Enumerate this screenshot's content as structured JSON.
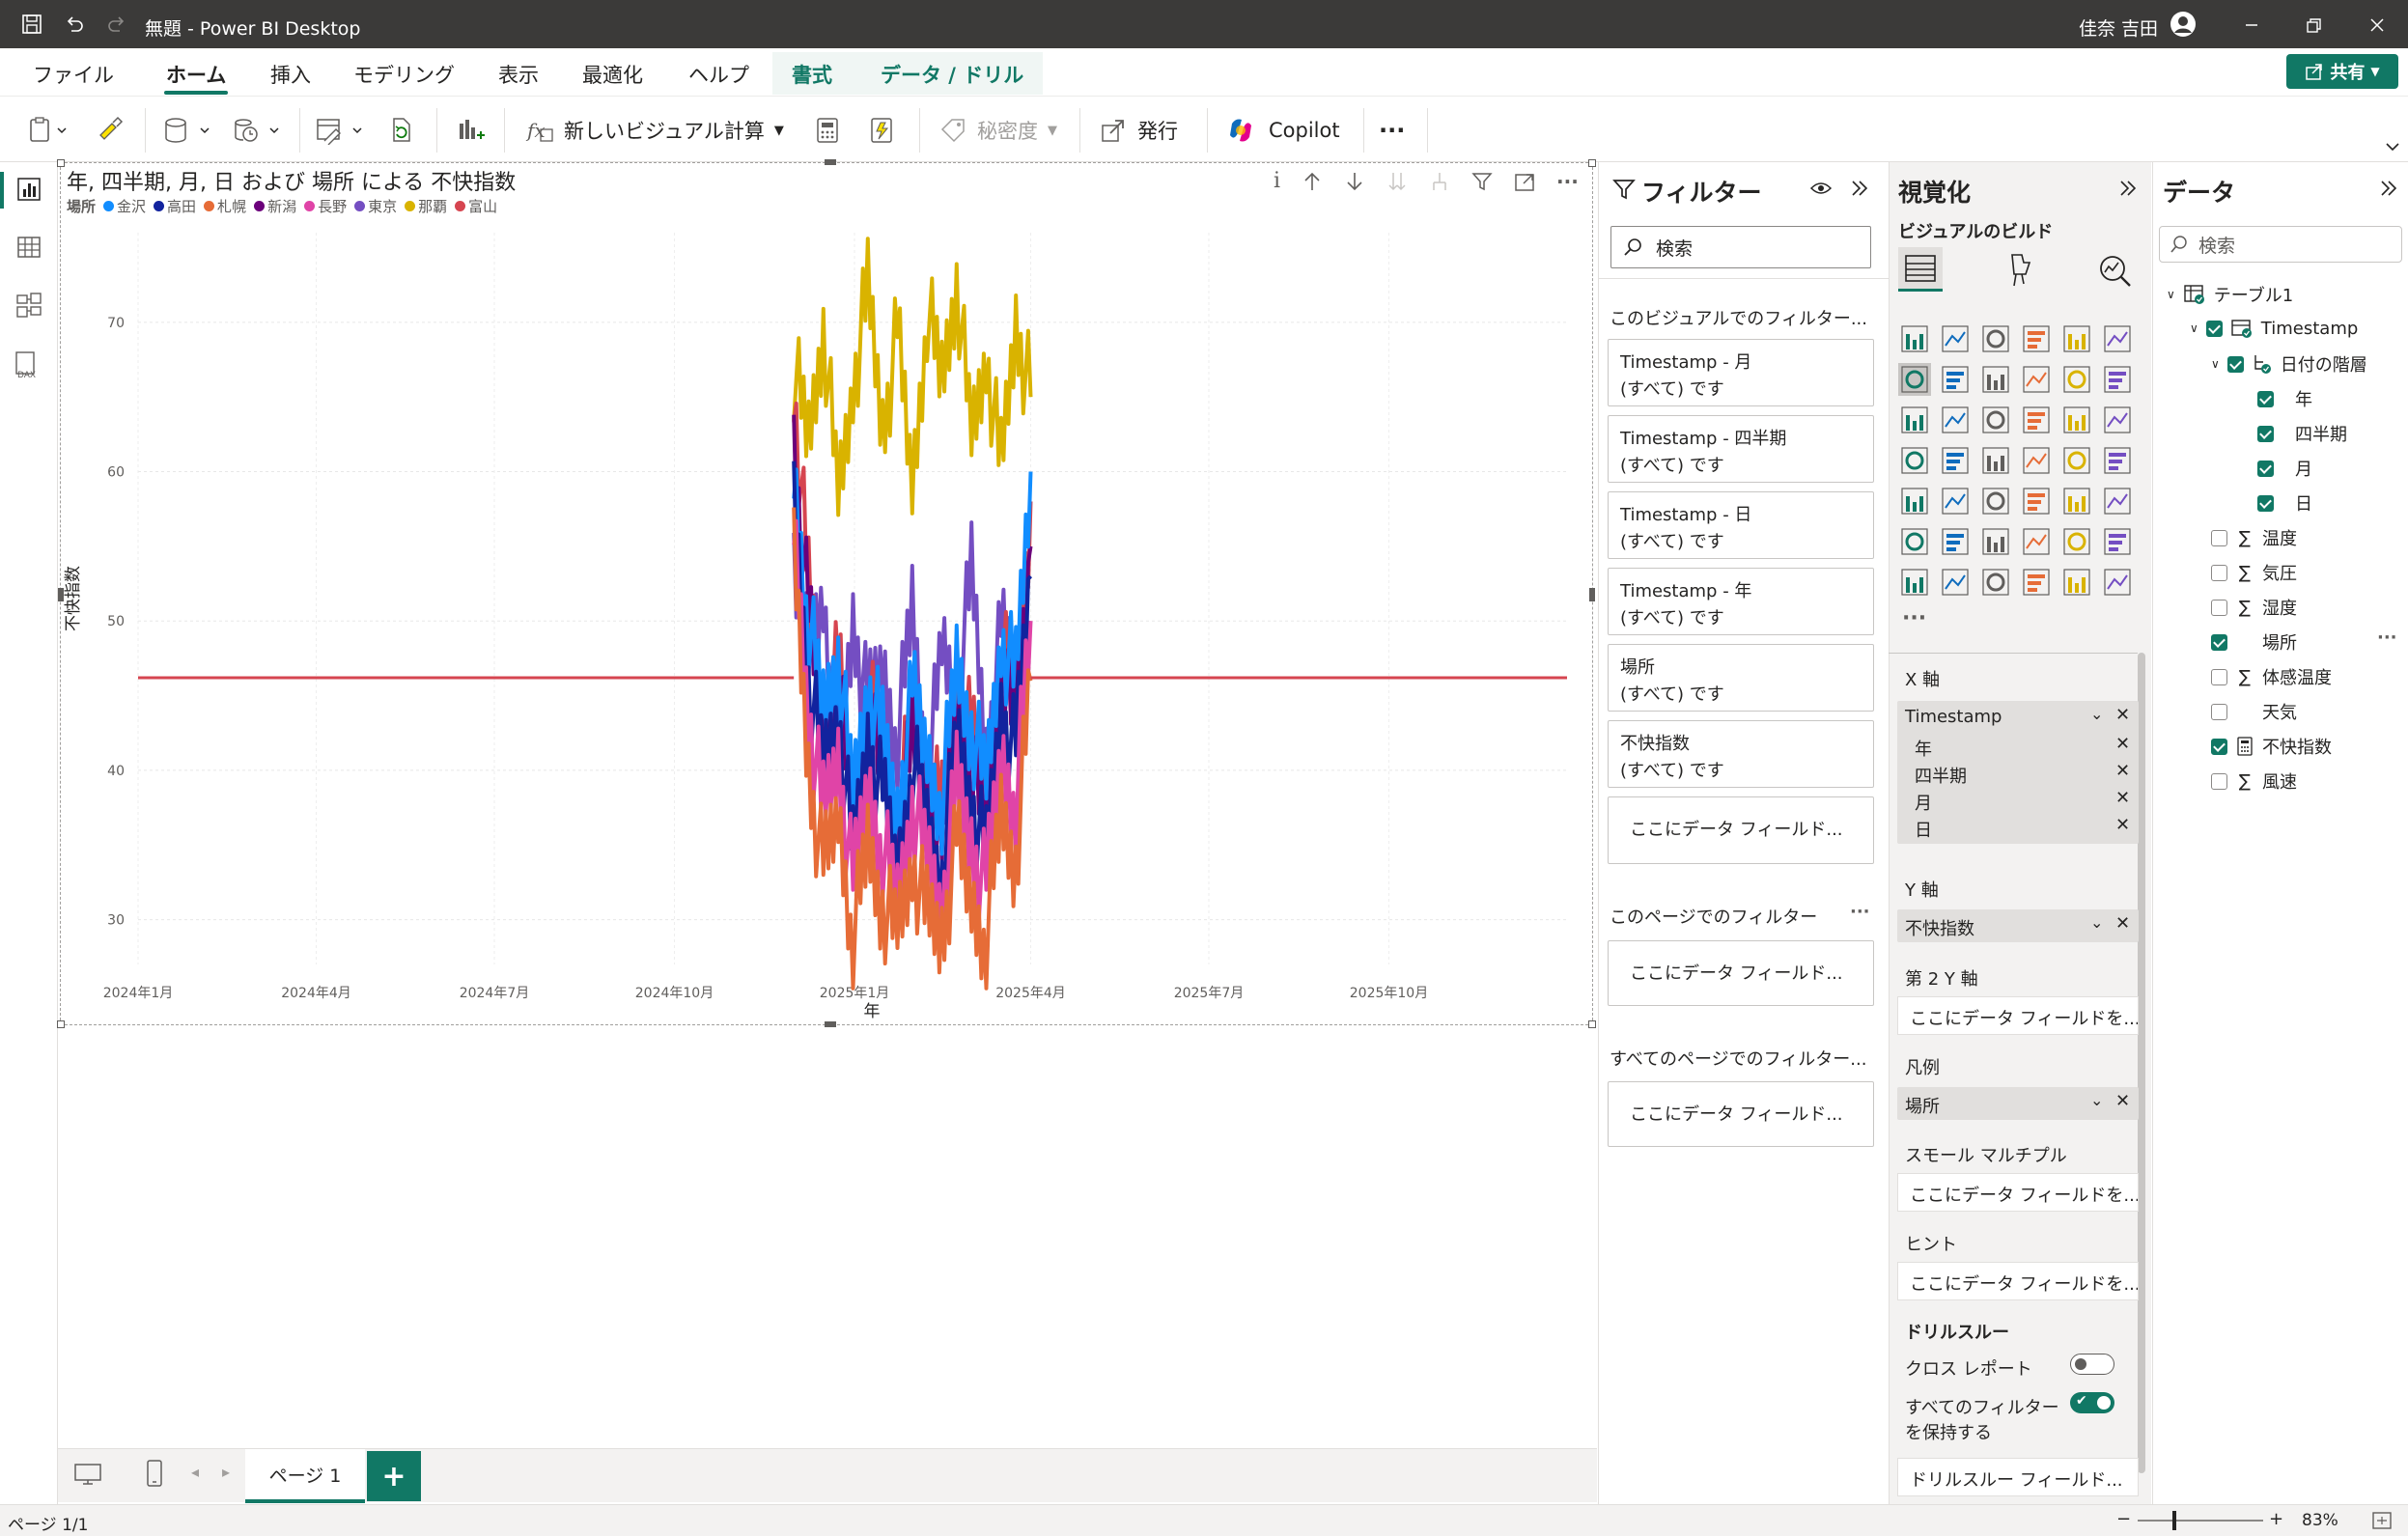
{
  "app": {
    "title": "無題 - Power BI Desktop",
    "user": "佳奈 吉田",
    "share_label": "共有"
  },
  "menu": {
    "file": "ファイル",
    "home": "ホーム",
    "insert": "挿入",
    "modeling": "モデリング",
    "view": "表示",
    "optimize": "最適化",
    "help": "ヘルプ",
    "format": "書式",
    "data_drill": "データ / ドリル"
  },
  "ribbon": {
    "new_visual_calc": "新しいビジュアル計算",
    "sensitivity": "秘密度",
    "publish": "発行",
    "copilot": "Copilot",
    "more": "···"
  },
  "visual": {
    "title": "年, 四半期, 月, 日 および 場所 による 不快指数",
    "legend_label": "場所",
    "legend": [
      {
        "name": "金沢",
        "color": "#118DFF"
      },
      {
        "name": "高田",
        "color": "#12239E"
      },
      {
        "name": "札幌",
        "color": "#E66C37"
      },
      {
        "name": "新潟",
        "color": "#6B007B"
      },
      {
        "name": "長野",
        "color": "#E044A7"
      },
      {
        "name": "東京",
        "color": "#744EC2"
      },
      {
        "name": "那覇",
        "color": "#D9B300"
      },
      {
        "name": "富山",
        "color": "#D64550"
      }
    ]
  },
  "chart_data": {
    "type": "line",
    "title": "年, 四半期, 月, 日 および 場所 による 不快指数",
    "xlabel": "年",
    "ylabel": "不快指数",
    "x_ticks": [
      "2024年1月",
      "2024年4月",
      "2024年7月",
      "2024年10月",
      "2025年1月",
      "2025年4月",
      "2025年7月",
      "2025年10月"
    ],
    "y_ticks": [
      30,
      40,
      50,
      60,
      70
    ],
    "ylim": [
      27,
      76
    ],
    "x_range": [
      "2024-01-01",
      "2025-12-31"
    ],
    "data_range": [
      "2024-12-01",
      "2025-04-01"
    ],
    "baseline_value": 46.2,
    "series": [
      {
        "name": "那覇",
        "values": [
          67,
          62,
          70,
          58,
          66,
          72,
          63,
          69,
          59,
          71,
          66,
          73,
          62,
          68,
          60,
          70,
          65
        ]
      },
      {
        "name": "東京",
        "values": [
          55,
          48,
          52,
          40,
          50,
          44,
          47,
          42,
          51,
          39,
          48,
          45,
          53,
          41,
          49,
          46,
          50
        ]
      },
      {
        "name": "富山",
        "values": [
          66,
          52,
          43,
          47,
          38,
          45,
          41,
          36,
          44,
          40,
          37,
          46,
          42,
          38,
          48,
          45,
          58
        ]
      },
      {
        "name": "新潟",
        "values": [
          62,
          50,
          42,
          46,
          36,
          44,
          39,
          35,
          42,
          38,
          34,
          44,
          40,
          36,
          46,
          43,
          55
        ]
      },
      {
        "name": "金沢",
        "values": [
          60,
          50,
          44,
          48,
          38,
          46,
          42,
          37,
          45,
          41,
          38,
          47,
          43,
          39,
          49,
          46,
          60
        ]
      },
      {
        "name": "高田",
        "values": [
          58,
          46,
          40,
          44,
          34,
          42,
          38,
          33,
          41,
          36,
          33,
          42,
          38,
          34,
          44,
          41,
          53
        ]
      },
      {
        "name": "長野",
        "values": [
          56,
          44,
          37,
          41,
          32,
          39,
          35,
          31,
          38,
          34,
          31,
          39,
          35,
          32,
          41,
          38,
          50
        ]
      },
      {
        "name": "札幌",
        "values": [
          54,
          40,
          33,
          37,
          29,
          35,
          31,
          29,
          34,
          30,
          29,
          35,
          31,
          29,
          37,
          34,
          46
        ]
      }
    ],
    "grid": true,
    "legend_position": "top-left"
  },
  "filters": {
    "title": "フィルター",
    "search_placeholder": "検索",
    "visual_section": "このビジュアルでのフィルター...",
    "page_section": "このページでのフィルター",
    "all_pages_section": "すべてのページでのフィルター...",
    "cards": [
      {
        "field": "Timestamp - 月",
        "state": "(すべて) です"
      },
      {
        "field": "Timestamp - 四半期",
        "state": "(すべて) です"
      },
      {
        "field": "Timestamp - 日",
        "state": "(すべて) です"
      },
      {
        "field": "Timestamp - 年",
        "state": "(すべて) です"
      },
      {
        "field": "場所",
        "state": "(すべて) です"
      },
      {
        "field": "不快指数",
        "state": "(すべて) です"
      }
    ],
    "drop_here": "ここにデータ フィールド..."
  },
  "viz_pane": {
    "title": "視覚化",
    "build_label": "ビジュアルのビルド",
    "x_axis": "X 軸",
    "x_field": "Timestamp",
    "x_levels": [
      "年",
      "四半期",
      "月",
      "日"
    ],
    "y_axis": "Y 軸",
    "y_field": "不快指数",
    "secondary_y": "第 2 Y 軸",
    "legend": "凡例",
    "legend_field": "場所",
    "small_multiples": "スモール マルチプル",
    "tooltips": "ヒント",
    "drop_here": "ここにデータ フィールドを...",
    "drillthrough": "ドリルスルー",
    "cross_report": "クロス レポート",
    "keep_filters_1": "すべてのフィルター",
    "keep_filters_2": "を保持する",
    "drill_drop": "ドリルスルー フィールド..."
  },
  "data_pane": {
    "title": "データ",
    "search_placeholder": "検索",
    "table": "テーブル1",
    "timestamp": "Timestamp",
    "hierarchy": "日付の階層",
    "levels": [
      "年",
      "四半期",
      "月",
      "日"
    ],
    "fields": [
      {
        "name": "温度",
        "sigma": true,
        "checked": false
      },
      {
        "name": "気圧",
        "sigma": true,
        "checked": false
      },
      {
        "name": "湿度",
        "sigma": true,
        "checked": false
      },
      {
        "name": "場所",
        "sigma": false,
        "checked": true
      },
      {
        "name": "体感温度",
        "sigma": true,
        "checked": false
      },
      {
        "name": "天気",
        "sigma": false,
        "checked": false
      },
      {
        "name": "不快指数",
        "sigma": false,
        "checked": true
      },
      {
        "name": "風速",
        "sigma": true,
        "checked": false
      }
    ]
  },
  "pages": {
    "tab": "ページ 1",
    "add": "+"
  },
  "status": {
    "page": "ページ 1/1",
    "zoom": "83%"
  }
}
